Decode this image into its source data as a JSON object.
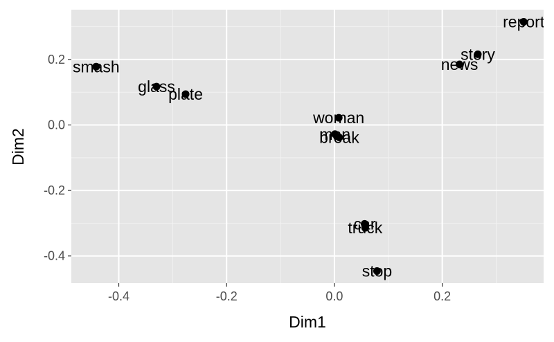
{
  "chart_data": {
    "type": "scatter",
    "title": "",
    "xlabel": "Dim1",
    "ylabel": "Dim2",
    "xlim": [
      -0.488,
      0.388
    ],
    "ylim": [
      -0.483,
      0.352
    ],
    "x_ticks": [
      -0.4,
      -0.2,
      0.0,
      0.2
    ],
    "x_tick_labels": [
      "-0.4",
      "-0.2",
      "0.0",
      "0.2"
    ],
    "y_ticks": [
      -0.4,
      -0.2,
      0.0,
      0.2
    ],
    "y_tick_labels": [
      "-0.4",
      "-0.2",
      "0.0",
      "0.2"
    ],
    "grid": true,
    "legend": "none",
    "colors": {
      "panel": "#e5e5e5",
      "grid_major": "#ffffff",
      "point": "#000000",
      "tick_text": "#4d4d4d",
      "tick_mark": "#333333"
    },
    "points": [
      {
        "label": "smash",
        "x": -0.442,
        "y": 0.178
      },
      {
        "label": "glass",
        "x": -0.33,
        "y": 0.117
      },
      {
        "label": "plate",
        "x": -0.276,
        "y": 0.094
      },
      {
        "label": "woman",
        "x": 0.008,
        "y": 0.022
      },
      {
        "label": "man",
        "x": 0.001,
        "y": -0.028
      },
      {
        "label": "break",
        "x": 0.009,
        "y": -0.038
      },
      {
        "label": "story",
        "x": 0.266,
        "y": 0.216
      },
      {
        "label": "news",
        "x": 0.232,
        "y": 0.185
      },
      {
        "label": "report",
        "x": 0.351,
        "y": 0.315
      },
      {
        "label": "car",
        "x": 0.056,
        "y": -0.302
      },
      {
        "label": "truck",
        "x": 0.057,
        "y": -0.314
      },
      {
        "label": "stop",
        "x": 0.079,
        "y": -0.446
      }
    ]
  }
}
